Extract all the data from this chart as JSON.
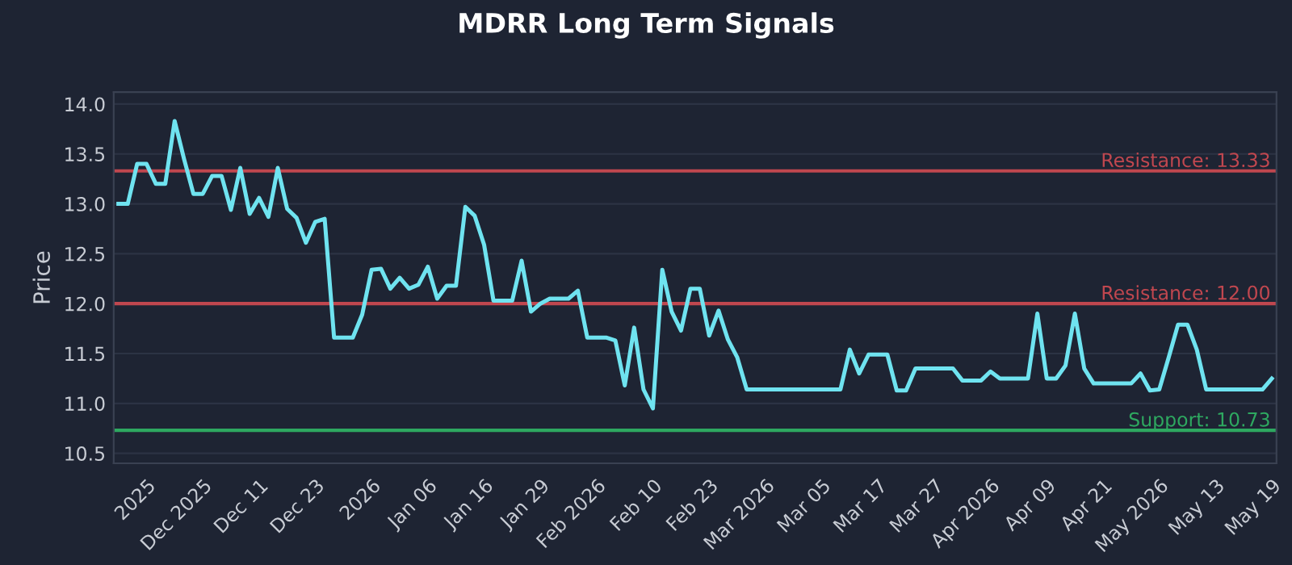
{
  "chart_data": {
    "type": "line",
    "title": "MDRR Long Term Signals",
    "ylabel": "Price",
    "categories": [
      null,
      null,
      null,
      "2025",
      null,
      null,
      null,
      null,
      null,
      "Dec 2025",
      null,
      null,
      null,
      null,
      null,
      "Dec 11",
      null,
      null,
      null,
      null,
      null,
      "Dec 23",
      null,
      null,
      null,
      null,
      null,
      "2026",
      null,
      null,
      null,
      null,
      null,
      "Jan 06",
      null,
      null,
      null,
      null,
      null,
      "Jan 16",
      null,
      null,
      null,
      null,
      null,
      "Jan 29",
      null,
      null,
      null,
      null,
      null,
      "Feb 2026",
      null,
      null,
      null,
      null,
      null,
      "Feb 10",
      null,
      null,
      null,
      null,
      null,
      "Feb 23",
      null,
      null,
      null,
      null,
      null,
      "Mar 2026",
      null,
      null,
      null,
      null,
      null,
      "Mar 05",
      null,
      null,
      null,
      null,
      null,
      "Mar 17",
      null,
      null,
      null,
      null,
      null,
      "Mar 27",
      null,
      null,
      null,
      null,
      null,
      "Apr 2026",
      null,
      null,
      null,
      null,
      null,
      "Apr 09",
      null,
      null,
      null,
      null,
      null,
      "Apr 21",
      null,
      null,
      null,
      null,
      null,
      "May 2026",
      null,
      null,
      null,
      null,
      null,
      "May 13",
      null,
      null,
      null,
      null,
      null,
      "May 19"
    ],
    "series": [
      {
        "color": "#6fe3f0",
        "values": [
          13.0,
          13.0,
          13.4,
          13.4,
          13.2,
          13.2,
          13.83,
          13.45,
          13.1,
          13.1,
          13.28,
          13.28,
          12.94,
          13.36,
          12.9,
          13.06,
          12.87,
          13.36,
          12.95,
          12.86,
          12.61,
          12.82,
          12.85,
          11.66,
          11.66,
          11.66,
          11.89,
          12.34,
          12.35,
          12.15,
          12.26,
          12.15,
          12.19,
          12.37,
          12.05,
          12.18,
          12.18,
          12.97,
          12.88,
          12.59,
          12.03,
          12.03,
          12.03,
          12.43,
          11.92,
          12.0,
          12.05,
          12.05,
          12.05,
          12.13,
          11.66,
          11.66,
          11.66,
          11.63,
          11.18,
          11.76,
          11.14,
          10.95,
          12.34,
          11.92,
          11.73,
          12.15,
          12.15,
          11.68,
          11.93,
          11.64,
          11.46,
          11.14,
          11.14,
          11.14,
          11.14,
          11.14,
          11.14,
          11.14,
          11.14,
          11.14,
          11.14,
          11.14,
          11.54,
          11.3,
          11.49,
          11.49,
          11.49,
          11.13,
          11.13,
          11.35,
          11.35,
          11.35,
          11.35,
          11.35,
          11.23,
          11.23,
          11.23,
          11.32,
          11.25,
          11.25,
          11.25,
          11.25,
          11.9,
          11.25,
          11.25,
          11.38,
          11.9,
          11.35,
          11.2,
          11.2,
          11.2,
          11.2,
          11.2,
          11.3,
          11.13,
          11.14,
          11.46,
          11.79,
          11.79,
          11.54,
          11.14,
          11.14,
          11.14,
          11.14,
          11.14,
          11.14,
          11.14,
          11.25
        ]
      }
    ],
    "ylim": [
      10.4,
      14.12
    ],
    "yticks": [
      {
        "value": 10.5,
        "label": "10.5"
      },
      {
        "value": 11,
        "label": "11.0"
      },
      {
        "value": 11.5,
        "label": "11.5"
      },
      {
        "value": 12,
        "label": "12.0"
      },
      {
        "value": 12.5,
        "label": "12.5"
      },
      {
        "value": 13,
        "label": "13.0"
      },
      {
        "value": 13.5,
        "label": "13.5"
      },
      {
        "value": 14,
        "label": "14.0"
      }
    ],
    "ref_lines": [
      {
        "axis": "y",
        "value": 13.33,
        "label": "Resistance: 13.33",
        "color": "#c0474f"
      },
      {
        "axis": "y",
        "value": 12.0,
        "label": "Resistance: 12.00",
        "color": "#c0474f"
      },
      {
        "axis": "y",
        "value": 10.73,
        "label": "Support: 10.73",
        "color": "#2ea860"
      }
    ],
    "grid": "y",
    "line_style": "solid"
  }
}
